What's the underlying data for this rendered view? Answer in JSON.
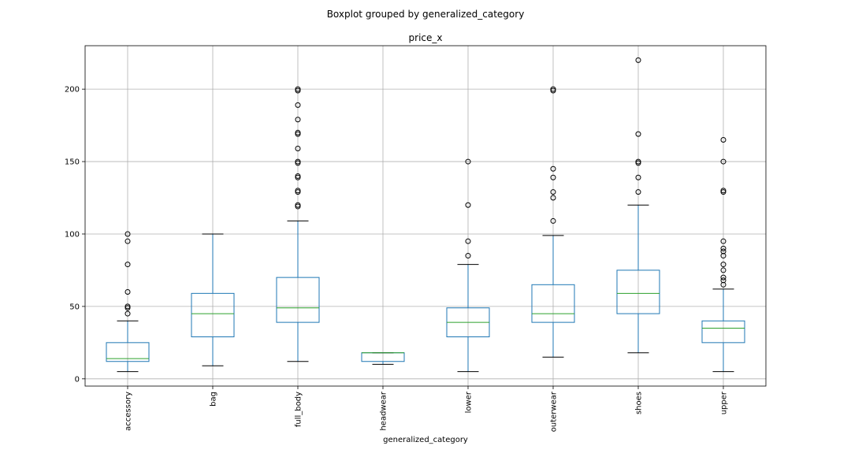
{
  "chart_data": {
    "type": "boxplot",
    "suptitle": "Boxplot grouped by generalized_category",
    "title": "price_x",
    "xlabel": "generalized_category",
    "ylabel": "",
    "ylim": [
      -5,
      230
    ],
    "yticks": [
      0,
      50,
      100,
      150,
      200
    ],
    "grid": true,
    "categories": [
      "accessory",
      "bag",
      "full_body",
      "headwear",
      "lower",
      "outerwear",
      "shoes",
      "upper"
    ],
    "boxes": [
      {
        "category": "accessory",
        "whislo": 5,
        "q1": 12,
        "med": 14,
        "q3": 25,
        "whishi": 40,
        "fliers": [
          45,
          49,
          50,
          60,
          79,
          95,
          100
        ]
      },
      {
        "category": "bag",
        "whislo": 9,
        "q1": 29,
        "med": 45,
        "q3": 59,
        "whishi": 100,
        "fliers": []
      },
      {
        "category": "full_body",
        "whislo": 12,
        "q1": 39,
        "med": 49,
        "q3": 70,
        "whishi": 109,
        "fliers": [
          119,
          120,
          129,
          130,
          139,
          140,
          149,
          150,
          159,
          169,
          170,
          179,
          189,
          199,
          200
        ]
      },
      {
        "category": "headwear",
        "whislo": 10,
        "q1": 12,
        "med": 18,
        "q3": 18,
        "whishi": 18,
        "fliers": []
      },
      {
        "category": "lower",
        "whislo": 5,
        "q1": 29,
        "med": 39,
        "q3": 49,
        "whishi": 79,
        "fliers": [
          85,
          95,
          120,
          150
        ]
      },
      {
        "category": "outerwear",
        "whislo": 15,
        "q1": 39,
        "med": 45,
        "q3": 65,
        "whishi": 99,
        "fliers": [
          109,
          125,
          129,
          139,
          145,
          199,
          200
        ]
      },
      {
        "category": "shoes",
        "whislo": 18,
        "q1": 45,
        "med": 59,
        "q3": 75,
        "whishi": 120,
        "fliers": [
          129,
          139,
          149,
          150,
          169,
          220
        ]
      },
      {
        "category": "upper",
        "whislo": 5,
        "q1": 25,
        "med": 35,
        "q3": 40,
        "whishi": 62,
        "fliers": [
          65,
          68,
          70,
          75,
          79,
          85,
          88,
          90,
          95,
          129,
          130,
          150,
          165
        ]
      }
    ]
  }
}
